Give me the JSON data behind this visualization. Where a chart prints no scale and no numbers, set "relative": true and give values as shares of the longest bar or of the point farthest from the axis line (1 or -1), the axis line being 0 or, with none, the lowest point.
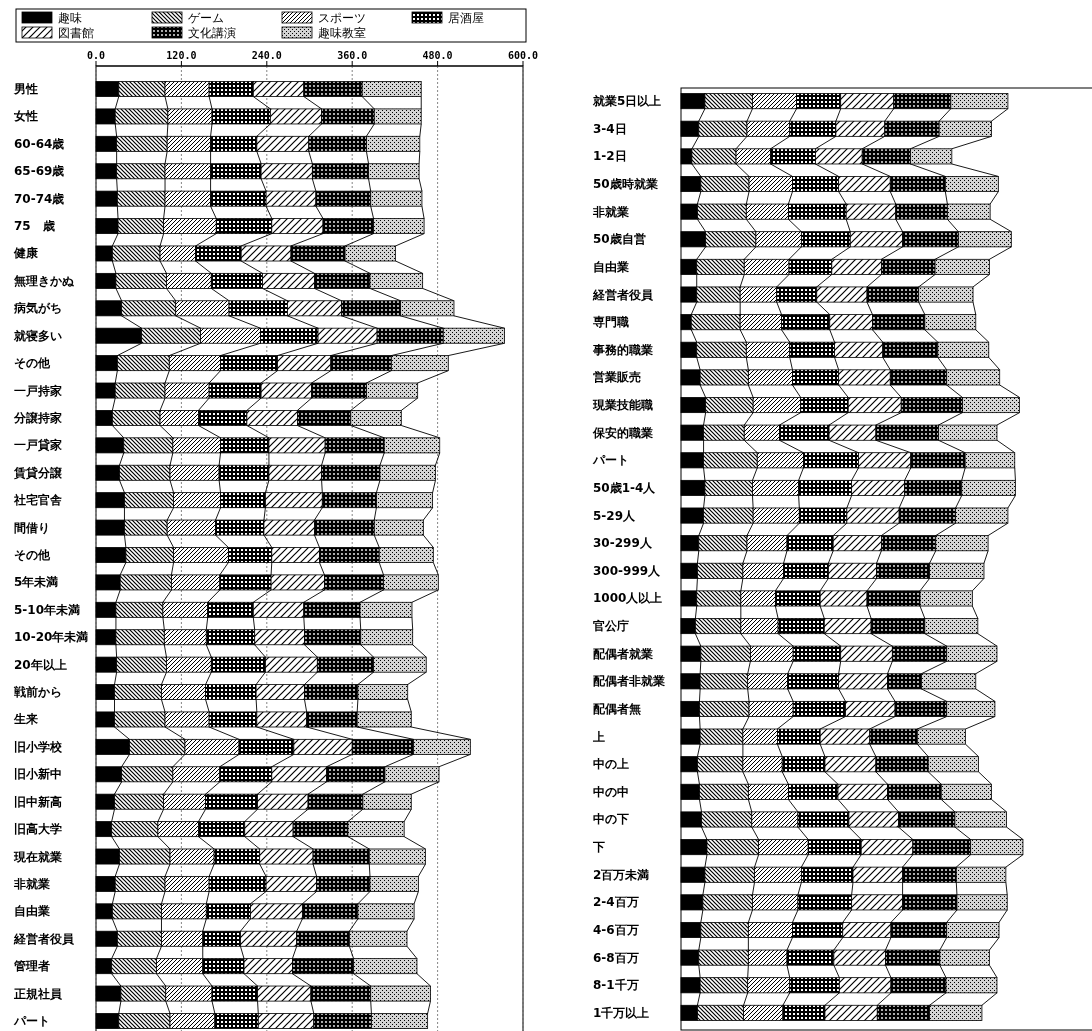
{
  "chart_data": [
    {
      "type": "bar",
      "orientation": "horizontal",
      "stacked": true,
      "legend": "top left",
      "grid": "x",
      "xlim": [
        0,
        600
      ],
      "xticks": [
        {
          "value": 0,
          "label": "0.0"
        },
        {
          "value": 120,
          "label": "120.0"
        },
        {
          "value": 240,
          "label": "240.0"
        },
        {
          "value": 360,
          "label": "360.0"
        },
        {
          "value": 480,
          "label": "480.0"
        },
        {
          "value": 600,
          "label": "600.0"
        }
      ],
      "categories": [
        "男性",
        "女性",
        "60-64歳",
        "65-69歳",
        "70-74歳",
        "75　歳",
        "健康",
        "無理きかぬ",
        "病気がち",
        "就寝多い",
        "その他",
        "一戸持家",
        "分譲持家",
        "一戸貸家",
        "賃貸分譲",
        "社宅官舎",
        "間借り",
        "その他",
        "5年未満",
        "5-10年未満",
        "10-20年未満",
        "20年以上",
        "戦前から",
        "生来",
        "旧小学校",
        "旧小新中",
        "旧中新高",
        "旧高大学",
        "現在就業",
        "非就業",
        "自由業",
        "経営者役員",
        "管理者",
        "正規社員",
        "パート"
      ],
      "series": [
        {
          "name": "趣味",
          "color": "#000000",
          "values": [
            32,
            27,
            29,
            29,
            30,
            31,
            23,
            28,
            36,
            64,
            30,
            27,
            23,
            39,
            33,
            40,
            40,
            42,
            34,
            28,
            28,
            29,
            26,
            26,
            47,
            36,
            26,
            22,
            33,
            27,
            23,
            30,
            22,
            35,
            32
          ]
        },
        {
          "name": "ゲーム",
          "color": "#000000",
          "values": [
            65,
            74,
            71,
            68,
            67,
            64,
            67,
            71,
            76,
            83,
            73,
            70,
            67,
            69,
            71,
            69,
            60,
            67,
            72,
            66,
            68,
            70,
            66,
            71,
            78,
            72,
            69,
            65,
            71,
            70,
            69,
            62,
            63,
            63,
            72
          ]
        },
        {
          "name": "スポーツ",
          "color": "#000000",
          "values": [
            62,
            62,
            61,
            64,
            64,
            74,
            50,
            63,
            75,
            84,
            72,
            62,
            54,
            67,
            69,
            66,
            68,
            77,
            68,
            63,
            59,
            63,
            62,
            62,
            76,
            66,
            59,
            57,
            62,
            62,
            63,
            58,
            65,
            65,
            63
          ]
        },
        {
          "name": "居酒屋",
          "color": "#000000",
          "values": [
            62,
            82,
            65,
            71,
            78,
            78,
            64,
            72,
            82,
            81,
            80,
            73,
            68,
            68,
            70,
            63,
            68,
            61,
            72,
            64,
            68,
            76,
            71,
            67,
            77,
            73,
            73,
            65,
            64,
            80,
            62,
            53,
            58,
            64,
            61
          ]
        },
        {
          "name": "図書館",
          "color": "#000000",
          "values": [
            71,
            72,
            73,
            72,
            70,
            72,
            70,
            73,
            76,
            83,
            75,
            71,
            71,
            79,
            74,
            80,
            71,
            67,
            75,
            71,
            70,
            73,
            68,
            70,
            82,
            77,
            71,
            68,
            75,
            71,
            73,
            79,
            68,
            75,
            78
          ]
        },
        {
          "name": "文化講演",
          "color": "#000000",
          "values": [
            82,
            74,
            81,
            79,
            77,
            71,
            76,
            78,
            83,
            93,
            85,
            77,
            75,
            83,
            82,
            76,
            84,
            84,
            83,
            79,
            79,
            79,
            75,
            71,
            86,
            82,
            77,
            77,
            79,
            75,
            78,
            74,
            86,
            84,
            81
          ]
        },
        {
          "name": "趣味教室",
          "color": "#000000",
          "values": [
            83,
            66,
            75,
            71,
            72,
            71,
            71,
            74,
            75,
            86,
            80,
            72,
            71,
            78,
            78,
            79,
            69,
            76,
            77,
            73,
            73,
            74,
            70,
            76,
            80,
            76,
            68,
            79,
            79,
            68,
            79,
            81,
            89,
            84,
            79
          ]
        }
      ]
    },
    {
      "type": "bar",
      "orientation": "horizontal",
      "stacked": true,
      "relative": true,
      "categories": [
        "就業5日以上",
        "3-4日",
        "1-2日",
        "50歳時就業",
        "非就業",
        "50歳自営",
        "自由業",
        "経営者役員",
        "専門職",
        "事務的職業",
        "営業販売",
        "現業技能職",
        "保安的職業",
        "パート",
        "50歳1-4人",
        "5-29人",
        "30-299人",
        "300-999人",
        "1000人以上",
        "官公庁",
        "配偶者就業",
        "配偶者非就業",
        "配偶者無",
        "上",
        "中の上",
        "中の中",
        "中の下",
        "下",
        "2百万未満",
        "2-4百万",
        "4-6百万",
        "6-8百万",
        "8-1千万",
        "1千万以上"
      ],
      "series": [
        {
          "color": "#000000",
          "values": [
            0.07,
            0.052,
            0.032,
            0.058,
            0.048,
            0.072,
            0.046,
            0.046,
            0.03,
            0.046,
            0.056,
            0.072,
            0.066,
            0.066,
            0.07,
            0.066,
            0.052,
            0.048,
            0.046,
            0.042,
            0.058,
            0.056,
            0.054,
            0.056,
            0.048,
            0.054,
            0.06,
            0.076,
            0.07,
            0.064,
            0.058,
            0.052,
            0.056,
            0.048
          ]
        },
        {
          "color": "#000000",
          "values": [
            0.139,
            0.141,
            0.129,
            0.141,
            0.143,
            0.147,
            0.139,
            0.127,
            0.143,
            0.145,
            0.141,
            0.139,
            0.119,
            0.157,
            0.139,
            0.145,
            0.141,
            0.133,
            0.129,
            0.133,
            0.145,
            0.139,
            0.145,
            0.125,
            0.133,
            0.143,
            0.147,
            0.151,
            0.145,
            0.145,
            0.139,
            0.145,
            0.139,
            0.135
          ]
        },
        {
          "color": "#000000",
          "values": [
            0.129,
            0.125,
            0.101,
            0.127,
            0.123,
            0.133,
            0.131,
            0.107,
            0.121,
            0.127,
            0.129,
            0.139,
            0.103,
            0.135,
            0.135,
            0.135,
            0.117,
            0.119,
            0.101,
            0.109,
            0.125,
            0.117,
            0.129,
            0.101,
            0.115,
            0.117,
            0.135,
            0.145,
            0.137,
            0.133,
            0.129,
            0.113,
            0.123,
            0.115
          ]
        },
        {
          "color": "#000000",
          "values": [
            0.129,
            0.135,
            0.131,
            0.135,
            0.169,
            0.143,
            0.125,
            0.117,
            0.141,
            0.131,
            0.135,
            0.139,
            0.145,
            0.161,
            0.155,
            0.139,
            0.135,
            0.131,
            0.131,
            0.135,
            0.139,
            0.149,
            0.153,
            0.125,
            0.125,
            0.145,
            0.149,
            0.155,
            0.151,
            0.157,
            0.147,
            0.137,
            0.145,
            0.123
          ]
        },
        {
          "color": "#000000",
          "values": [
            0.155,
            0.143,
            0.137,
            0.151,
            0.145,
            0.153,
            0.145,
            0.147,
            0.125,
            0.141,
            0.151,
            0.155,
            0.137,
            0.153,
            0.155,
            0.153,
            0.141,
            0.141,
            0.137,
            0.137,
            0.151,
            0.143,
            0.145,
            0.145,
            0.149,
            0.145,
            0.145,
            0.151,
            0.145,
            0.149,
            0.141,
            0.151,
            0.151,
            0.153
          ]
        },
        {
          "color": "#000000",
          "values": [
            0.167,
            0.159,
            0.141,
            0.161,
            0.151,
            0.163,
            0.157,
            0.151,
            0.153,
            0.161,
            0.165,
            0.179,
            0.183,
            0.159,
            0.167,
            0.165,
            0.159,
            0.155,
            0.155,
            0.157,
            0.159,
            0.099,
            0.151,
            0.139,
            0.153,
            0.157,
            0.165,
            0.169,
            0.157,
            0.159,
            0.163,
            0.159,
            0.161,
            0.153
          ]
        },
        {
          "color": "#000000",
          "values": [
            0.167,
            0.153,
            0.121,
            0.155,
            0.125,
            0.155,
            0.159,
            0.159,
            0.149,
            0.149,
            0.155,
            0.167,
            0.171,
            0.145,
            0.157,
            0.153,
            0.153,
            0.159,
            0.153,
            0.155,
            0.147,
            0.159,
            0.141,
            0.141,
            0.147,
            0.147,
            0.151,
            0.153,
            0.145,
            0.147,
            0.153,
            0.145,
            0.149,
            0.153
          ]
        }
      ]
    }
  ]
}
